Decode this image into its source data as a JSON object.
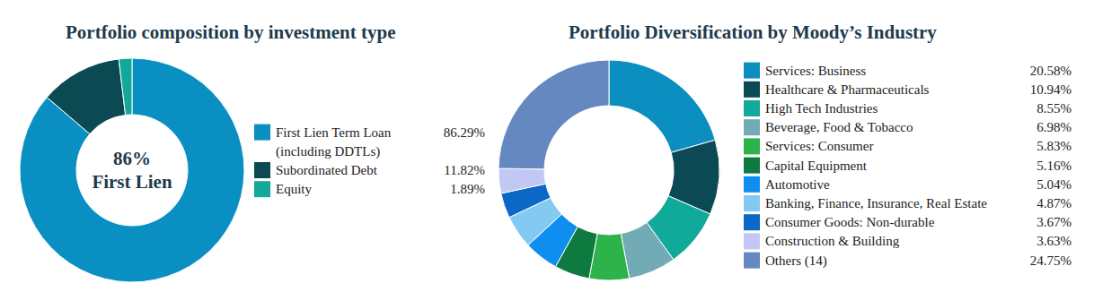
{
  "chart_data": [
    {
      "type": "pie",
      "title": "Portfolio composition by investment type",
      "categories": [
        "First Lien Term Loan (including DDTLs)",
        "Subordinated Debt",
        "Equity"
      ],
      "values": [
        86.29,
        11.82,
        1.89
      ],
      "value_labels": [
        "86.29%",
        "11.82%",
        "1.89%"
      ],
      "colors": [
        "#0a8fc2",
        "#0b4a52",
        "#12a89a"
      ],
      "annotations": [
        "86%",
        "First Lien"
      ]
    },
    {
      "type": "pie",
      "title": "Portfolio Diversification by Moody’s Industry",
      "categories": [
        "Services: Business",
        "Healthcare & Pharmaceuticals",
        "High Tech Industries",
        "Beverage, Food & Tobacco",
        "Services: Consumer",
        "Capital Equipment",
        "Automotive",
        "Banking, Finance, Insurance, Real Estate",
        "Consumer Goods: Non-durable",
        "Construction & Building",
        "Others (14)"
      ],
      "values": [
        20.58,
        10.94,
        8.55,
        6.98,
        5.83,
        5.16,
        5.04,
        4.87,
        3.67,
        3.63,
        24.75
      ],
      "value_labels": [
        "20.58%",
        "10.94%",
        "8.55%",
        "6.98%",
        "5.83%",
        "5.16%",
        "5.04%",
        "4.87%",
        "3.67%",
        "3.63%",
        "24.75%"
      ],
      "colors": [
        "#0b8fc0",
        "#0b4a55",
        "#10a99a",
        "#72abb5",
        "#2db34a",
        "#0f7a40",
        "#0e8ff0",
        "#84c9f2",
        "#0b68c6",
        "#c2c8f4",
        "#6688c0"
      ]
    }
  ]
}
